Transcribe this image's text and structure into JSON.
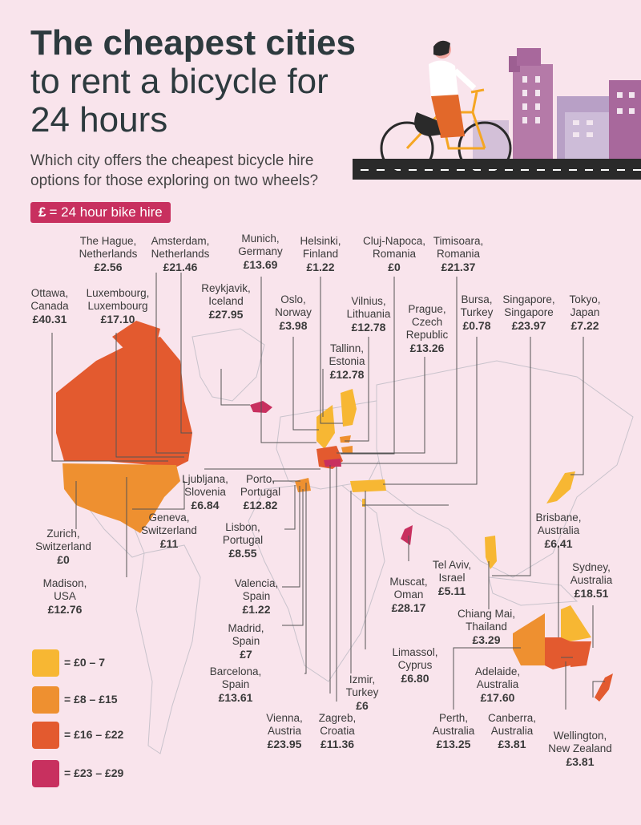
{
  "title": {
    "line1": "The cheapest cities",
    "line2": "to rent a bicycle for",
    "line3": "24 hours"
  },
  "subtitle": "Which city offers the cheapest bicycle hire options for those exploring on two wheels?",
  "key": {
    "symbol": "£",
    "text": "= 24 hour bike hire"
  },
  "colors": {
    "band1": "#f7b733",
    "band2": "#ee9030",
    "band3": "#e35a2f",
    "band4": "#c8305f",
    "background": "#f9e4ec"
  },
  "legend": [
    {
      "label": "= £0 – 7"
    },
    {
      "label": "= £8 – £15"
    },
    {
      "label": "= £16 – £22"
    },
    {
      "label": "= £23 – £29"
    }
  ],
  "cities": [
    {
      "name": "The Hague,",
      "country": "Netherlands",
      "price": "£2.56"
    },
    {
      "name": "Amsterdam,",
      "country": "Netherlands",
      "price": "£21.46"
    },
    {
      "name": "Munich,",
      "country": "Germany",
      "price": "£13.69"
    },
    {
      "name": "Helsinki,",
      "country": "Finland",
      "price": "£1.22"
    },
    {
      "name": "Cluj-Napoca,",
      "country": "Romania",
      "price": "£0"
    },
    {
      "name": "Timisoara,",
      "country": "Romania",
      "price": "£21.37"
    },
    {
      "name": "Ottawa,",
      "country": "Canada",
      "price": "£40.31"
    },
    {
      "name": "Luxembourg,",
      "country": "Luxembourg",
      "price": "£17.10"
    },
    {
      "name": "Reykjavik,",
      "country": "Iceland",
      "price": "£27.95"
    },
    {
      "name": "Oslo,",
      "country": "Norway",
      "price": "£3.98"
    },
    {
      "name": "Vilnius,",
      "country": "Lithuania",
      "price": "£12.78"
    },
    {
      "name": "Prague,",
      "country": "Czech",
      "country2": "Republic",
      "price": "£13.26"
    },
    {
      "name": "Bursa,",
      "country": "Turkey",
      "price": "£0.78"
    },
    {
      "name": "Singapore,",
      "country": "Singapore",
      "price": "£23.97"
    },
    {
      "name": "Tokyo,",
      "country": "Japan",
      "price": "£7.22"
    },
    {
      "name": "Tallinn,",
      "country": "Estonia",
      "price": "£12.78"
    },
    {
      "name": "Ljubljana,",
      "country": "Slovenia",
      "price": "£6.84"
    },
    {
      "name": "Porto,",
      "country": "Portugal",
      "price": "£12.82"
    },
    {
      "name": "Zurich,",
      "country": "Switzerland",
      "price": "£0"
    },
    {
      "name": "Geneva,",
      "country": "Switzerland",
      "price": "£11"
    },
    {
      "name": "Lisbon,",
      "country": "Portugal",
      "price": "£8.55"
    },
    {
      "name": "Brisbane,",
      "country": "Australia",
      "price": "£6.41"
    },
    {
      "name": "Madison,",
      "country": "USA",
      "price": "£12.76"
    },
    {
      "name": "Valencia,",
      "country": "Spain",
      "price": "£1.22"
    },
    {
      "name": "Muscat,",
      "country": "Oman",
      "price": "£28.17"
    },
    {
      "name": "Tel Aviv,",
      "country": "Israel",
      "price": "£5.11"
    },
    {
      "name": "Sydney,",
      "country": "Australia",
      "price": "£18.51"
    },
    {
      "name": "Madrid,",
      "country": "Spain",
      "price": "£7"
    },
    {
      "name": "Chiang Mai,",
      "country": "Thailand",
      "price": "£3.29"
    },
    {
      "name": "Limassol,",
      "country": "Cyprus",
      "price": "£6.80"
    },
    {
      "name": "Barcelona,",
      "country": "Spain",
      "price": "£13.61"
    },
    {
      "name": "Adelaide,",
      "country": "Australia",
      "price": "£17.60"
    },
    {
      "name": "Izmir,",
      "country": "Turkey",
      "price": "£6"
    },
    {
      "name": "Vienna,",
      "country": "Austria",
      "price": "£23.95"
    },
    {
      "name": "Zagreb,",
      "country": "Croatia",
      "price": "£11.36"
    },
    {
      "name": "Perth,",
      "country": "Australia",
      "price": "£13.25"
    },
    {
      "name": "Canberra,",
      "country": "Australia",
      "price": "£3.81"
    },
    {
      "name": "Wellington,",
      "country": "New Zealand",
      "price": "£3.81"
    }
  ]
}
